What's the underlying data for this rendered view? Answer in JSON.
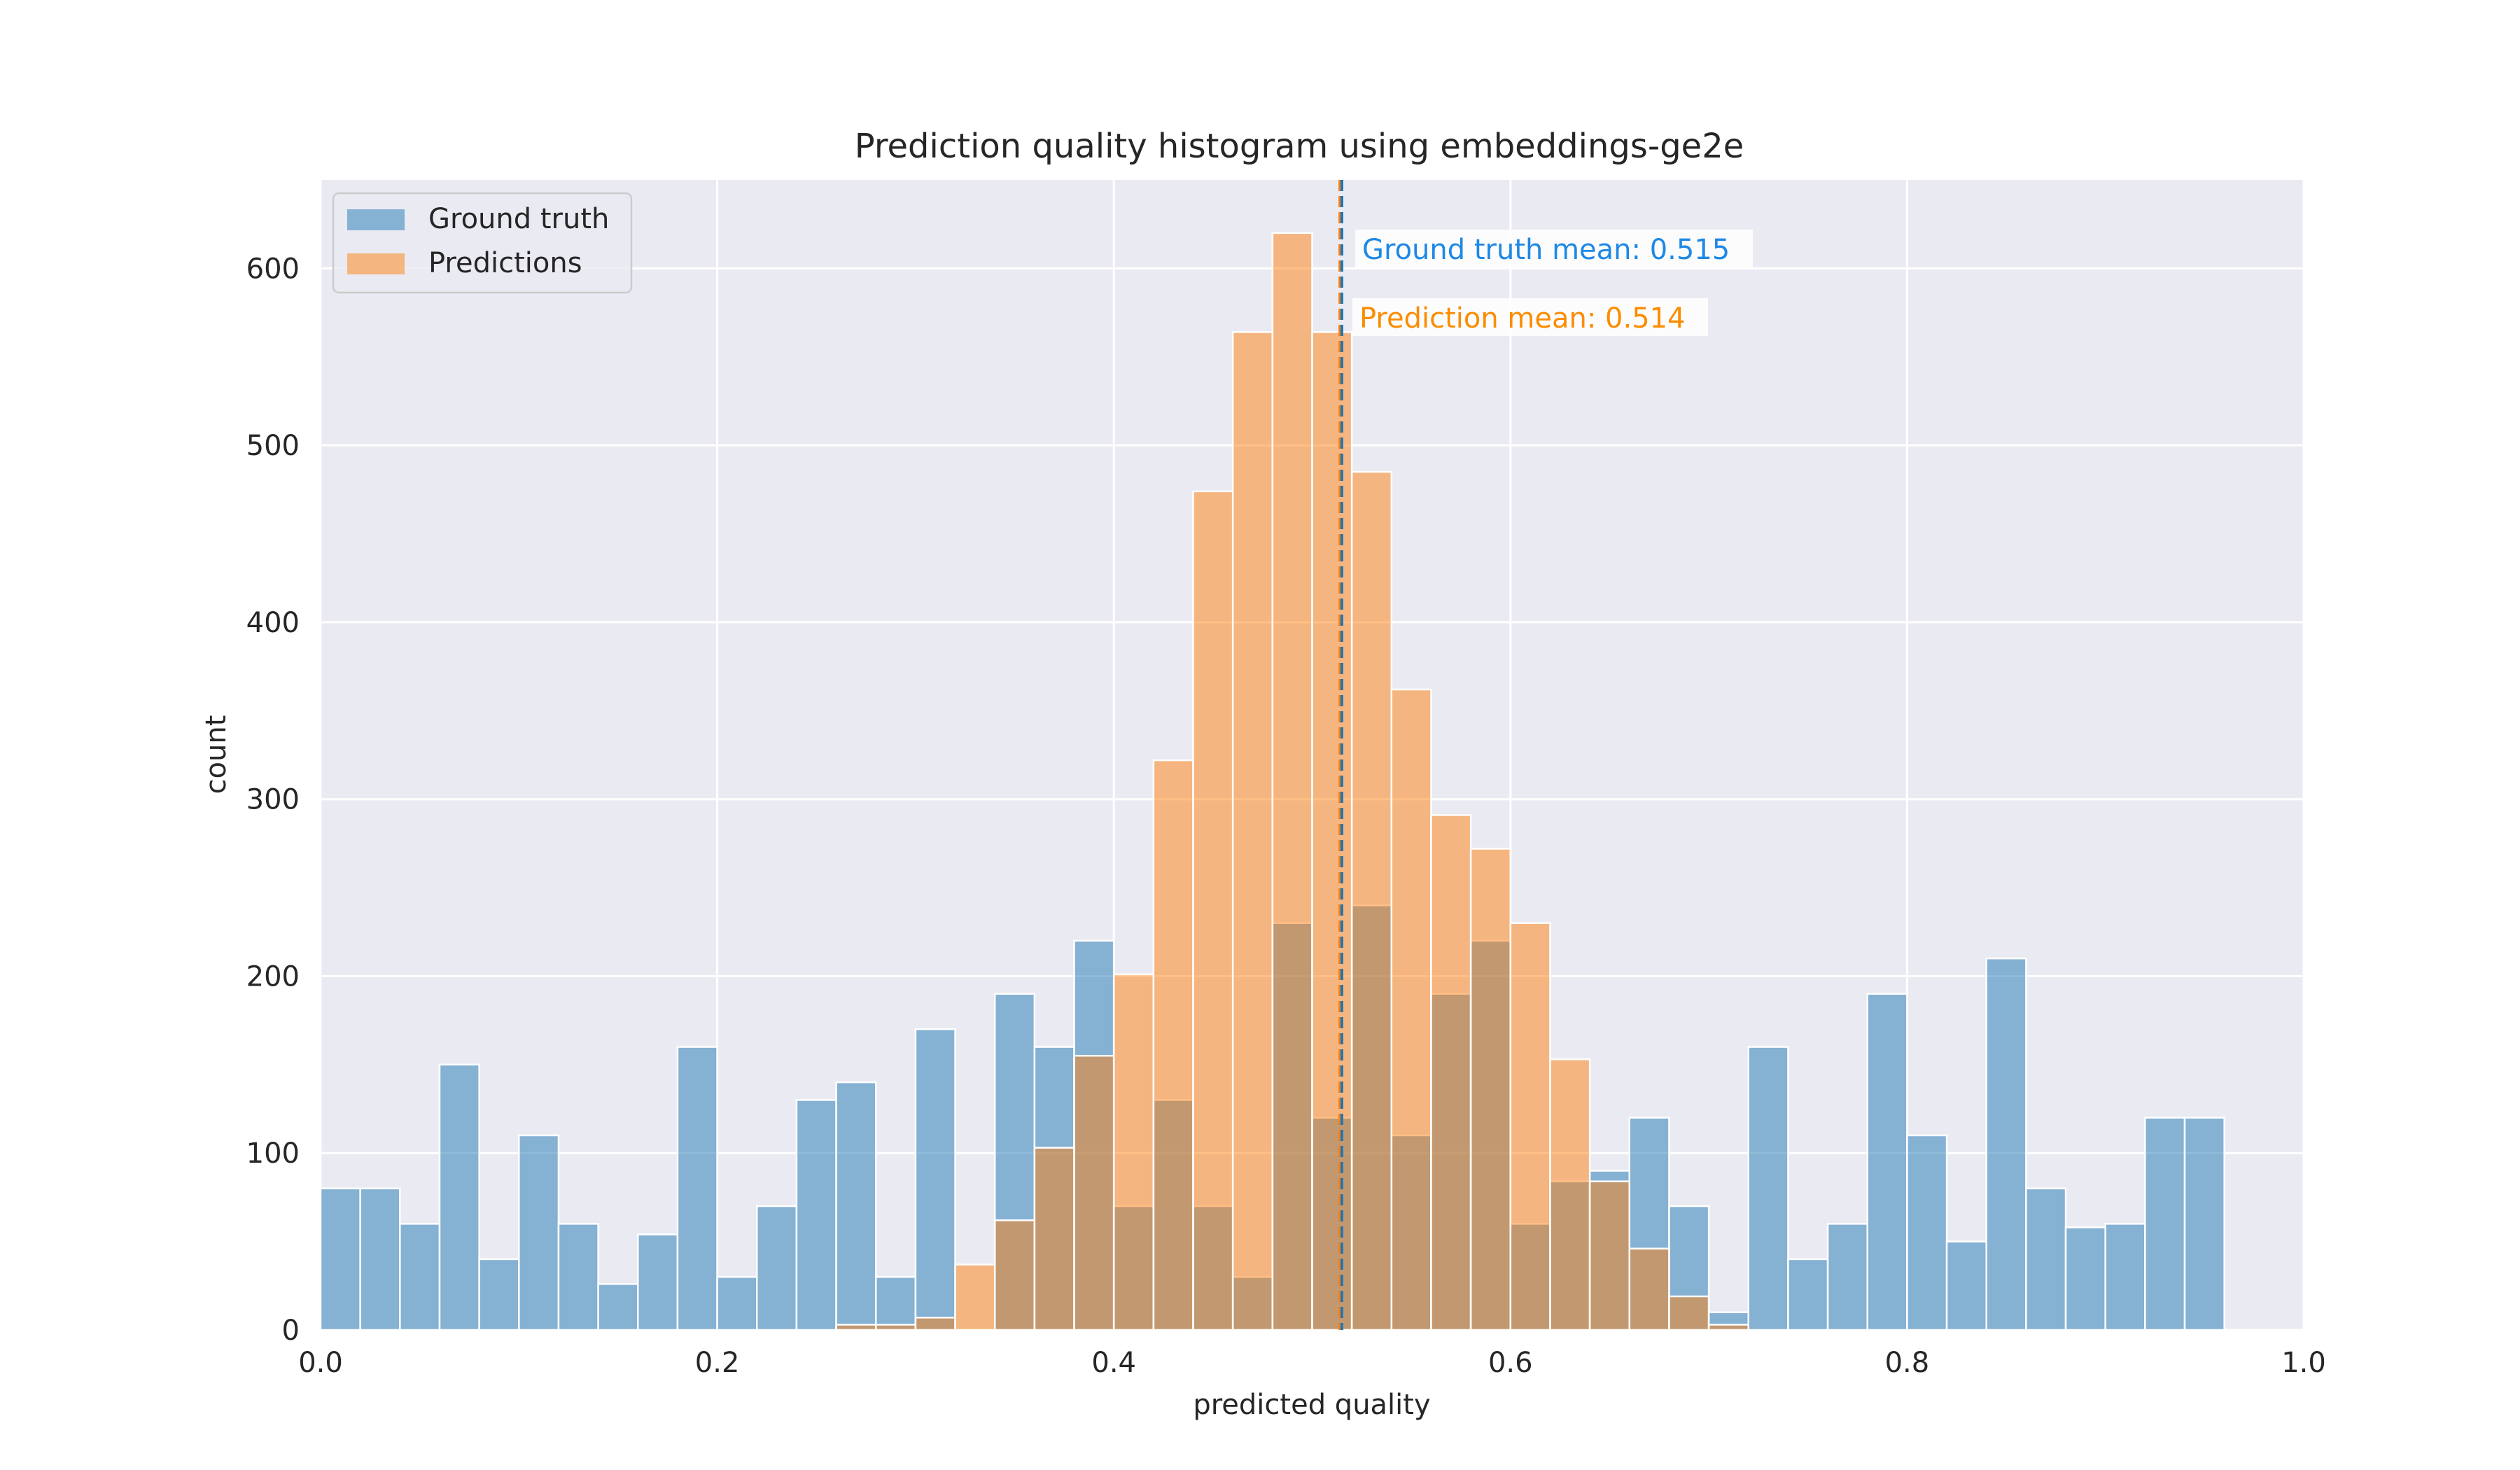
{
  "chart_data": {
    "type": "bar",
    "title": "Prediction quality histogram using embeddings-ge2e",
    "xlabel": "predicted quality",
    "ylabel": "count",
    "xlim": [
      0.0,
      1.0
    ],
    "ylim": [
      0,
      650
    ],
    "xticks": [
      "0.0",
      "0.2",
      "0.4",
      "0.6",
      "0.8",
      "1.0"
    ],
    "yticks": [
      "0",
      "100",
      "200",
      "300",
      "400",
      "500",
      "600"
    ],
    "xtick_values": [
      0.0,
      0.2,
      0.4,
      0.6,
      0.8,
      1.0
    ],
    "ytick_values": [
      0,
      100,
      200,
      300,
      400,
      500,
      600
    ],
    "grid": true,
    "legend_position": "top-left",
    "bin_edges_start": 0.0,
    "bin_width": 0.02,
    "series": [
      {
        "name": "Ground truth",
        "color": "#1f77b4",
        "values": [
          80,
          80,
          60,
          150,
          40,
          110,
          60,
          26,
          54,
          160,
          30,
          70,
          130,
          140,
          30,
          170,
          0,
          190,
          160,
          220,
          70,
          130,
          70,
          30,
          230,
          120,
          240,
          110,
          190,
          220,
          60,
          84,
          90,
          120,
          70,
          10,
          160,
          40,
          60,
          190,
          110,
          50,
          210,
          80,
          58,
          60,
          120,
          120,
          0,
          0
        ]
      },
      {
        "name": "Predictions",
        "color": "#ff7f0e",
        "values": [
          0,
          0,
          0,
          0,
          0,
          0,
          0,
          0,
          0,
          0,
          0,
          0,
          0,
          3,
          3,
          7,
          37,
          62,
          103,
          155,
          201,
          322,
          474,
          564,
          620,
          564,
          485,
          362,
          291,
          272,
          230,
          153,
          84,
          46,
          19,
          3,
          0,
          0,
          0,
          0,
          0,
          0,
          0,
          0,
          0,
          0,
          0,
          0,
          0,
          0
        ]
      }
    ],
    "annotations": [
      {
        "text": "Ground truth mean: 0.515",
        "value": 0.515,
        "color": "#1e88e5"
      },
      {
        "text": "Prediction mean: 0.514",
        "value": 0.514,
        "color": "#fb8c00"
      }
    ]
  }
}
